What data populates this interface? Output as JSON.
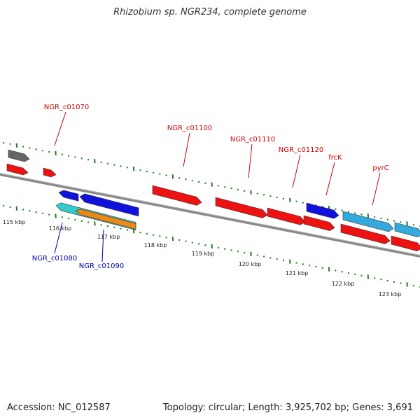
{
  "title": "Rhizobium sp. NGR234, complete genome",
  "accession": "Accession: NC_012587",
  "summary": "Topology: circular; Length: 3,925,702 bp; Genes: 3,691",
  "colors": {
    "backbone": "#888888",
    "tick": "#1d7a1d",
    "forward_label": "#cc0000",
    "reverse_label": "#0000aa",
    "red": "#ee1111",
    "blue": "#1111dd",
    "cyan": "#33cccc",
    "lightblue": "#33aadd",
    "orange": "#ee8811",
    "gray": "#666666"
  },
  "axis": {
    "unit": "kbp",
    "labels": [
      "115 kbp",
      "116 kbp",
      "117 kbp",
      "118 kbp",
      "119 kbp",
      "120 kbp",
      "121 kbp",
      "122 kbp",
      "123 kbp"
    ]
  },
  "features": [
    {
      "id": "f-gray",
      "color": "gray",
      "strand": "+",
      "label": ""
    },
    {
      "id": "f-red-a",
      "color": "red",
      "strand": "+",
      "label": ""
    },
    {
      "id": "f-red-b",
      "color": "red",
      "strand": "+",
      "label": "NGR_c01070"
    },
    {
      "id": "f-blue-small",
      "color": "blue",
      "strand": "-",
      "label": ""
    },
    {
      "id": "f-blue-long",
      "color": "blue",
      "strand": "-",
      "label": ""
    },
    {
      "id": "f-cyan",
      "color": "cyan",
      "strand": "-",
      "label": "NGR_c01080"
    },
    {
      "id": "f-orange",
      "color": "orange",
      "strand": "-",
      "label": "NGR_c01090"
    },
    {
      "id": "f-red-1100",
      "color": "red",
      "strand": "+",
      "label": "NGR_c01100"
    },
    {
      "id": "f-red-1110",
      "color": "red",
      "strand": "+",
      "label": "NGR_c01110"
    },
    {
      "id": "f-red-1120",
      "color": "red",
      "strand": "+",
      "label": "NGR_c01120"
    },
    {
      "id": "f-blue-frck",
      "color": "blue",
      "strand": "+",
      "label": "frcK"
    },
    {
      "id": "f-red-frck-low",
      "color": "red",
      "strand": "+",
      "label": ""
    },
    {
      "id": "f-lb-pyrc",
      "color": "lightblue",
      "strand": "+",
      "label": "pyrC"
    },
    {
      "id": "f-lb-right",
      "color": "lightblue",
      "strand": "+",
      "label": ""
    },
    {
      "id": "f-red-low-1",
      "color": "red",
      "strand": "+",
      "label": ""
    },
    {
      "id": "f-red-low-2",
      "color": "red",
      "strand": "+",
      "label": ""
    }
  ]
}
